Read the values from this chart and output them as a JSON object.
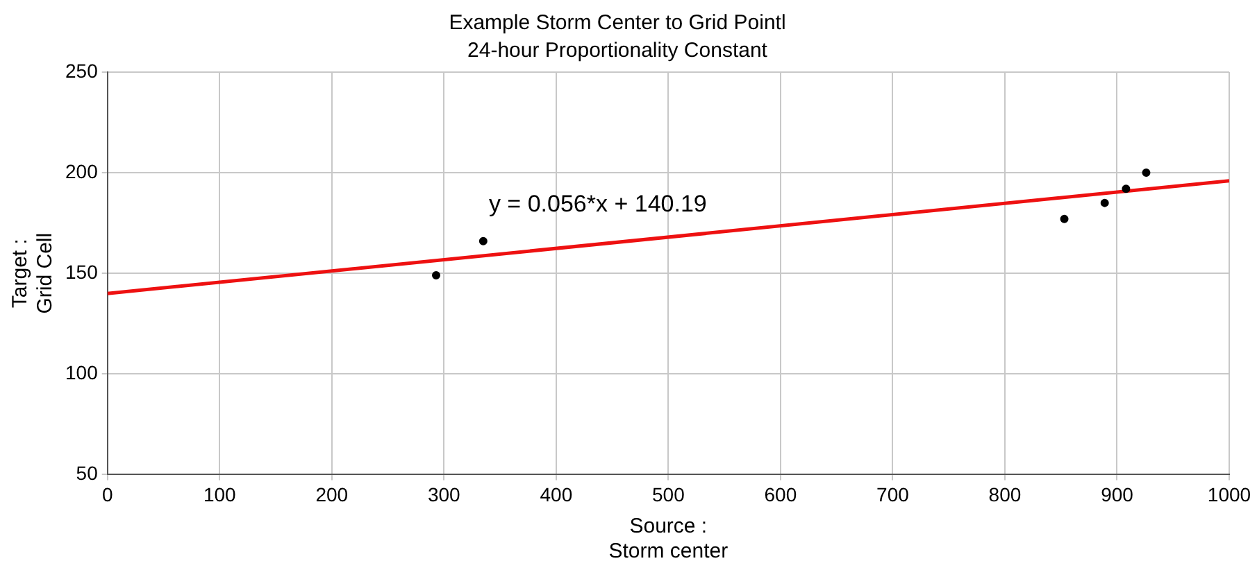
{
  "chart_data": {
    "type": "scatter",
    "title": "Example Storm Center to Grid Pointl",
    "subtitle": "24-hour Proportionality Constant",
    "xlabel": "Source :\nStorm center",
    "ylabel": "Target :\nGrid Cell",
    "annotations": [
      "y = 0.056*x + 140.19"
    ],
    "series": [
      {
        "marker": "circle",
        "color": "#000000",
        "x": [
          293,
          335,
          853,
          889,
          908,
          926
        ],
        "values": [
          149,
          166,
          177,
          185,
          192,
          200
        ]
      },
      {
        "type": "line",
        "marker": "none",
        "color": "#ee1111",
        "x": [
          0,
          1000
        ],
        "values": [
          140,
          196
        ]
      }
    ],
    "xlim": [
      0,
      1000
    ],
    "xticks": [
      0,
      100,
      200,
      300,
      400,
      500,
      600,
      700,
      800,
      900,
      1000
    ],
    "ylim": [
      50,
      250
    ],
    "yticks": [
      50,
      100,
      150,
      200,
      250
    ],
    "grid": true,
    "legend": false,
    "line_style": "solid"
  }
}
